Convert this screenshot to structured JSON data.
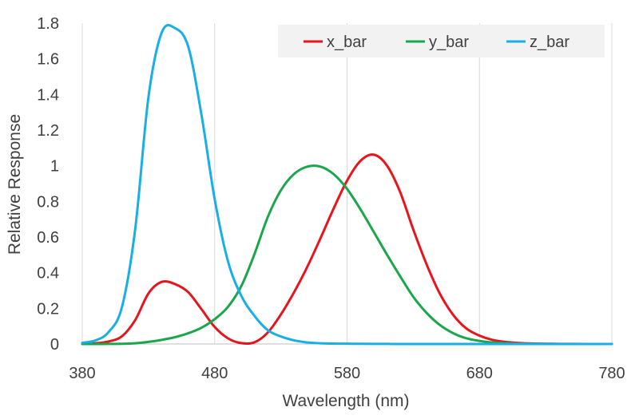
{
  "chart_data": {
    "type": "line",
    "xlabel": "Wavelength (nm)",
    "ylabel": "Relative Response",
    "xlim": [
      380,
      780
    ],
    "ylim": [
      0,
      1.8
    ],
    "x_ticks": [
      "380",
      "480",
      "580",
      "680",
      "780"
    ],
    "y_ticks": [
      "0",
      "0.2",
      "0.4",
      "0.6",
      "0.8",
      "1",
      "1.2",
      "1.4",
      "1.6",
      "1.8"
    ],
    "grid": "vertical",
    "legend": "top-right",
    "x": [
      380,
      390,
      400,
      410,
      420,
      430,
      440,
      450,
      460,
      470,
      480,
      490,
      500,
      510,
      520,
      530,
      540,
      550,
      560,
      570,
      580,
      590,
      600,
      610,
      620,
      630,
      640,
      650,
      660,
      670,
      680,
      690,
      700,
      710,
      720,
      730,
      740,
      750,
      760,
      770,
      780
    ],
    "series": [
      {
        "name": "x_bar",
        "color": "#e8141c",
        "values": [
          0.0014,
          0.0042,
          0.0143,
          0.0435,
          0.1344,
          0.2839,
          0.3483,
          0.3362,
          0.2908,
          0.1954,
          0.0956,
          0.032,
          0.0049,
          0.0093,
          0.0633,
          0.1655,
          0.2904,
          0.4334,
          0.5945,
          0.7621,
          0.9163,
          1.0263,
          1.0622,
          1.0026,
          0.8544,
          0.6424,
          0.4479,
          0.2835,
          0.1649,
          0.0874,
          0.0468,
          0.0227,
          0.0114,
          0.0058,
          0.0029,
          0.0014,
          0.0007,
          0.0003,
          0.0002,
          0.0001,
          0.0
        ]
      },
      {
        "name": "y_bar",
        "color": "#1aa64a",
        "values": [
          0.0,
          0.0001,
          0.0004,
          0.0012,
          0.004,
          0.0116,
          0.023,
          0.038,
          0.06,
          0.091,
          0.139,
          0.208,
          0.323,
          0.503,
          0.71,
          0.862,
          0.954,
          0.995,
          0.995,
          0.952,
          0.87,
          0.757,
          0.631,
          0.503,
          0.381,
          0.265,
          0.175,
          0.107,
          0.061,
          0.032,
          0.017,
          0.0082,
          0.0041,
          0.0021,
          0.001,
          0.0005,
          0.0002,
          0.0001,
          0.0001,
          0.0,
          0.0
        ]
      },
      {
        "name": "z_bar",
        "color": "#18aee6",
        "values": [
          0.0065,
          0.0201,
          0.0679,
          0.2074,
          0.6456,
          1.3856,
          1.7471,
          1.7721,
          1.6692,
          1.2876,
          0.813,
          0.4652,
          0.272,
          0.1582,
          0.0782,
          0.0422,
          0.0203,
          0.0087,
          0.0039,
          0.0021,
          0.0017,
          0.0011,
          0.0008,
          0.0003,
          0.0002,
          0.0,
          0.0,
          0.0,
          0.0,
          0.0,
          0.0,
          0.0,
          0.0,
          0.0,
          0.0,
          0.0,
          0.0,
          0.0,
          0.0,
          0.0,
          0.0
        ]
      }
    ]
  }
}
